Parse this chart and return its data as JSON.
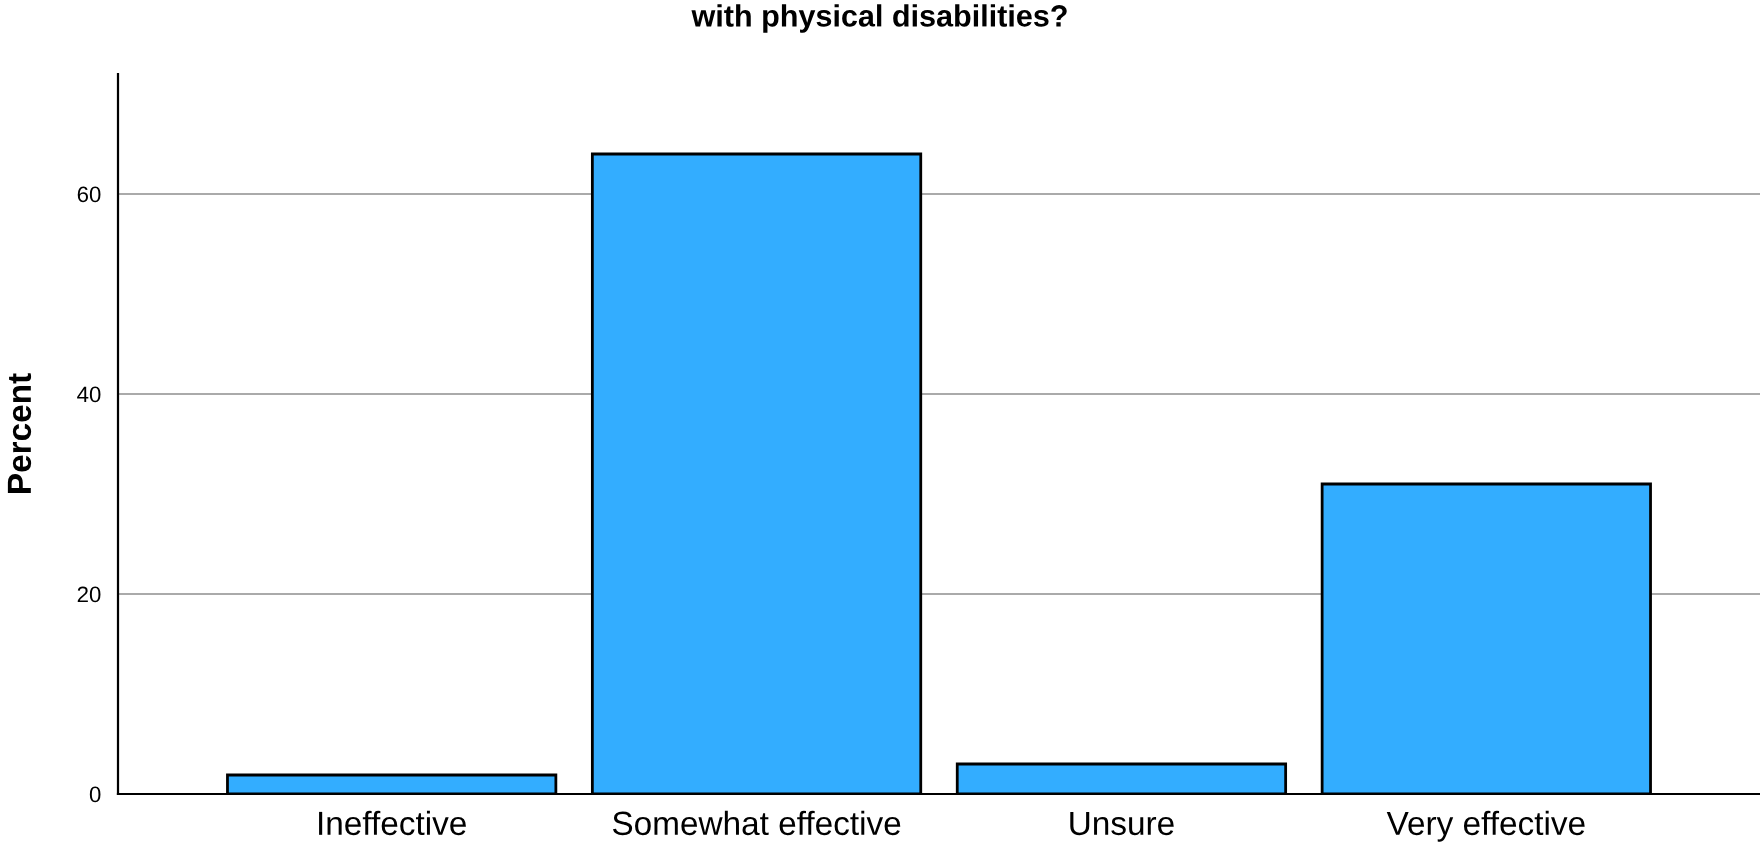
{
  "chart_data": {
    "type": "bar",
    "title": "with physical disabilities?",
    "ylabel": "Percent",
    "categories": [
      "Ineffective",
      "Somewhat effective",
      "Unsure",
      "Very effective"
    ],
    "values": [
      1.9,
      64.0,
      3.0,
      31.0
    ],
    "color": "#33adff",
    "ylim": [
      0,
      72
    ],
    "yticks": [
      0,
      20,
      40,
      60
    ],
    "grid": "y"
  }
}
